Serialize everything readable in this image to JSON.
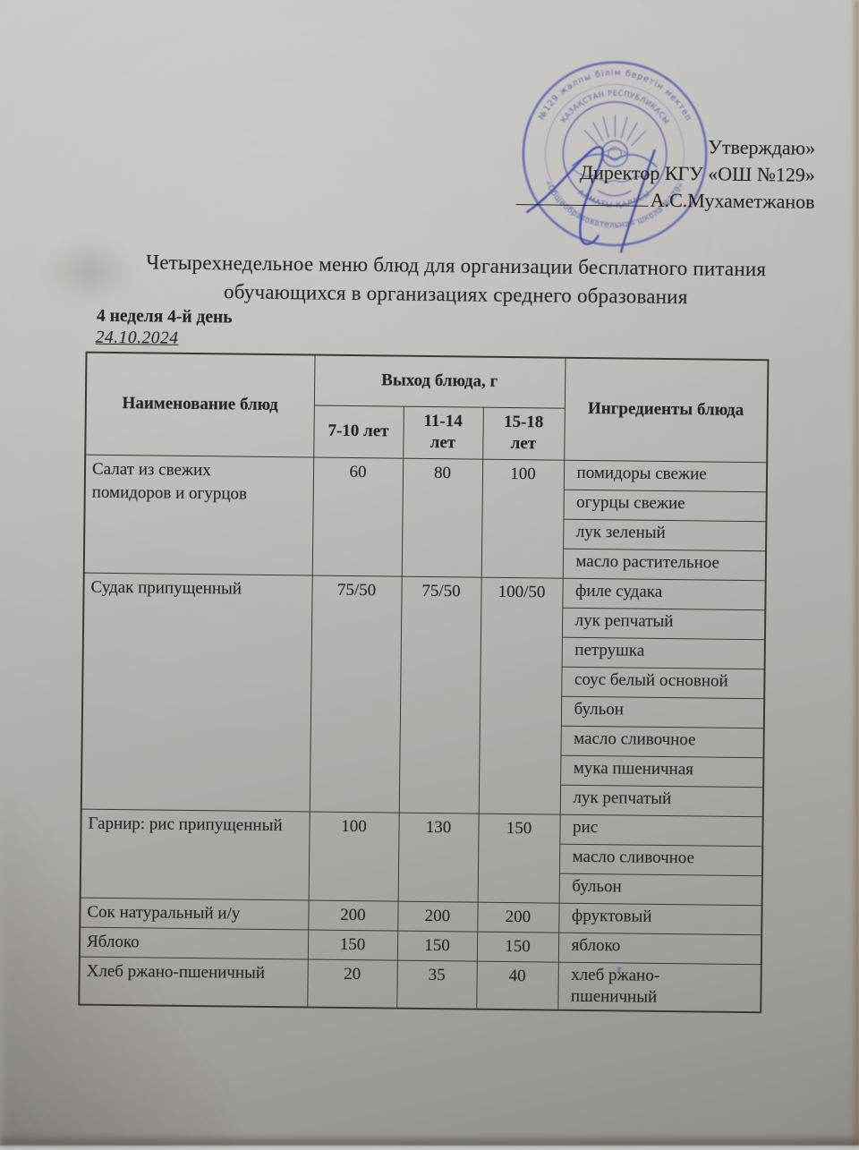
{
  "approval": {
    "line1": "Утверждаю»",
    "line2": "Директор КГУ «ОШ №129»",
    "line3": "А.С.Мухаметжанов"
  },
  "stamp": {
    "outer_top_text": "№129 жалпы білім беретін мектеп",
    "outer_bottom_text": "«Общеобразовательная школа №129»",
    "inner_top_text": "ҚАЗАҚСТАН РЕСПУБЛИКАСЫ",
    "inner_bottom_text": "АЛМАТЫ ҚАЛАСЫ",
    "ink_color": "#4d59b0",
    "signature_color": "#2e3da6"
  },
  "title": {
    "line1": "Четырехнедельное меню блюд для организации бесплатного питания",
    "line2": "обучающихся в организациях среднего образования"
  },
  "meta": {
    "week_day": "4 неделя 4-й день",
    "date": "24.10.2024"
  },
  "table": {
    "headers": {
      "name": "Наименование блюд",
      "output_group": "Выход блюда, г",
      "age_groups": [
        "7-10 лет",
        "11-14\nлет",
        "15-18\nлет"
      ],
      "ingredients": "Ингредиенты блюда"
    },
    "rows": [
      {
        "name": "Салат из свежих\nпомидоров и огурцов",
        "portions": [
          "60",
          "80",
          "100"
        ],
        "ingredients": [
          "помидоры свежие",
          "огурцы свежие",
          "лук зеленый",
          "масло растительное"
        ]
      },
      {
        "name": "Судак припущенный",
        "portions": [
          "75/50",
          "75/50",
          "100/50"
        ],
        "ingredients": [
          "филе судака",
          "лук репчатый",
          "петрушка",
          "соус белый основной",
          "бульон",
          "масло сливочное",
          "мука пшеничная",
          "лук репчатый"
        ]
      },
      {
        "name": "Гарнир: рис припущенный",
        "portions": [
          "100",
          "130",
          "150"
        ],
        "ingredients": [
          "рис",
          "масло сливочное",
          "бульон"
        ]
      },
      {
        "name": "Сок натуральный и/у",
        "portions": [
          "200",
          "200",
          "200"
        ],
        "ingredients": [
          "фруктовый"
        ]
      },
      {
        "name": "Яблоко",
        "portions": [
          "150",
          "150",
          "150"
        ],
        "ingredients": [
          "яблоко"
        ]
      },
      {
        "name": "Хлеб ржано-пшеничный",
        "portions": [
          "20",
          "35",
          "40"
        ],
        "ingredients": [
          "хлеб ржано-\nпшеничный"
        ]
      }
    ]
  }
}
